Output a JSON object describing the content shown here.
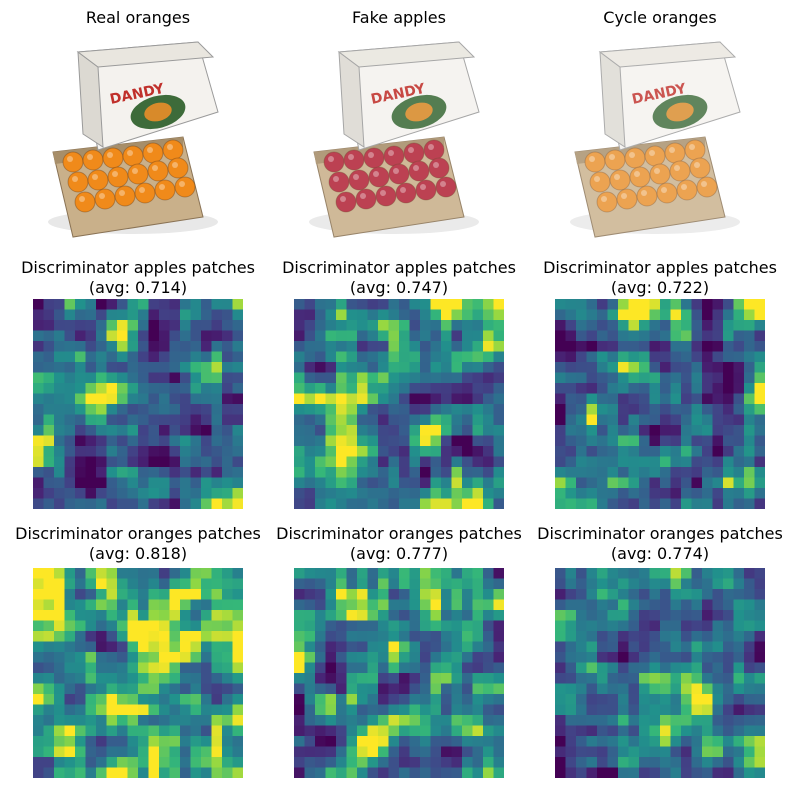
{
  "row1": {
    "titles": [
      "Real oranges",
      "Fake apples",
      "Cycle oranges"
    ],
    "image_labels": [
      "DANDY",
      "DANDY",
      "DANDY"
    ],
    "fruit_colors": [
      "#f08a1a",
      "#b3273b",
      "#e88f2b"
    ]
  },
  "row2": {
    "titles": [
      {
        "line1": "Discriminator apples patches",
        "line2": "(avg: 0.714)"
      },
      {
        "line1": "Discriminator apples patches",
        "line2": "(avg: 0.747)"
      },
      {
        "line1": "Discriminator apples patches",
        "line2": "(avg: 0.722)"
      }
    ]
  },
  "row3": {
    "titles": [
      {
        "line1": "Discriminator oranges patches",
        "line2": "(avg: 0.818)"
      },
      {
        "line1": "Discriminator oranges patches",
        "line2": "(avg: 0.777)"
      },
      {
        "line1": "Discriminator oranges patches",
        "line2": "(avg: 0.774)"
      }
    ]
  },
  "heatmap": {
    "colormap": "viridis",
    "grid": 20,
    "averages": [
      0.714,
      0.747,
      0.722,
      0.818,
      0.777,
      0.774
    ]
  }
}
